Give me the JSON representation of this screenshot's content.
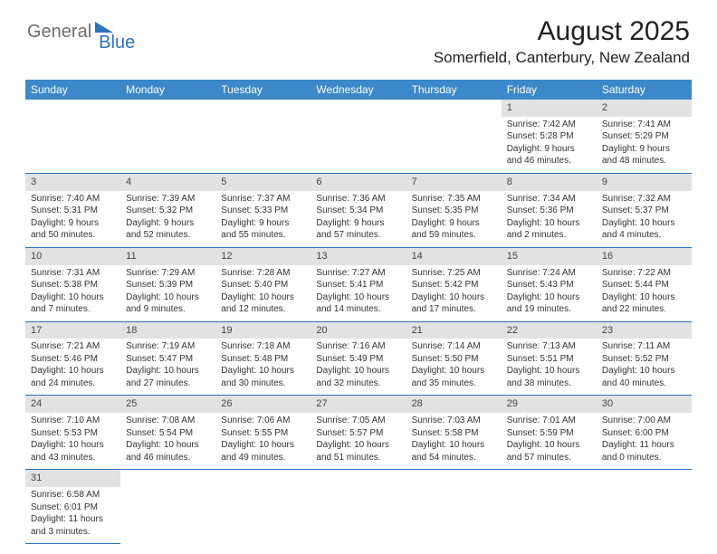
{
  "brand": {
    "part1": "General",
    "part2": "Blue"
  },
  "title": "August 2025",
  "location": "Somerfield, Canterbury, New Zealand",
  "colors": {
    "header_bg": "#3c88c8",
    "header_text": "#ffffff",
    "accent": "#2a74ba",
    "daynum_bg": "#e2e2e2",
    "text": "#333333",
    "logo_gray": "#6d6d6d"
  },
  "columns": [
    "Sunday",
    "Monday",
    "Tuesday",
    "Wednesday",
    "Thursday",
    "Friday",
    "Saturday"
  ],
  "weeks": [
    [
      null,
      null,
      null,
      null,
      null,
      {
        "n": "1",
        "sr": "7:42 AM",
        "ss": "5:28 PM",
        "dl": "9 hours and 46 minutes."
      },
      {
        "n": "2",
        "sr": "7:41 AM",
        "ss": "5:29 PM",
        "dl": "9 hours and 48 minutes."
      }
    ],
    [
      {
        "n": "3",
        "sr": "7:40 AM",
        "ss": "5:31 PM",
        "dl": "9 hours and 50 minutes."
      },
      {
        "n": "4",
        "sr": "7:39 AM",
        "ss": "5:32 PM",
        "dl": "9 hours and 52 minutes."
      },
      {
        "n": "5",
        "sr": "7:37 AM",
        "ss": "5:33 PM",
        "dl": "9 hours and 55 minutes."
      },
      {
        "n": "6",
        "sr": "7:36 AM",
        "ss": "5:34 PM",
        "dl": "9 hours and 57 minutes."
      },
      {
        "n": "7",
        "sr": "7:35 AM",
        "ss": "5:35 PM",
        "dl": "9 hours and 59 minutes."
      },
      {
        "n": "8",
        "sr": "7:34 AM",
        "ss": "5:36 PM",
        "dl": "10 hours and 2 minutes."
      },
      {
        "n": "9",
        "sr": "7:32 AM",
        "ss": "5:37 PM",
        "dl": "10 hours and 4 minutes."
      }
    ],
    [
      {
        "n": "10",
        "sr": "7:31 AM",
        "ss": "5:38 PM",
        "dl": "10 hours and 7 minutes."
      },
      {
        "n": "11",
        "sr": "7:29 AM",
        "ss": "5:39 PM",
        "dl": "10 hours and 9 minutes."
      },
      {
        "n": "12",
        "sr": "7:28 AM",
        "ss": "5:40 PM",
        "dl": "10 hours and 12 minutes."
      },
      {
        "n": "13",
        "sr": "7:27 AM",
        "ss": "5:41 PM",
        "dl": "10 hours and 14 minutes."
      },
      {
        "n": "14",
        "sr": "7:25 AM",
        "ss": "5:42 PM",
        "dl": "10 hours and 17 minutes."
      },
      {
        "n": "15",
        "sr": "7:24 AM",
        "ss": "5:43 PM",
        "dl": "10 hours and 19 minutes."
      },
      {
        "n": "16",
        "sr": "7:22 AM",
        "ss": "5:44 PM",
        "dl": "10 hours and 22 minutes."
      }
    ],
    [
      {
        "n": "17",
        "sr": "7:21 AM",
        "ss": "5:46 PM",
        "dl": "10 hours and 24 minutes."
      },
      {
        "n": "18",
        "sr": "7:19 AM",
        "ss": "5:47 PM",
        "dl": "10 hours and 27 minutes."
      },
      {
        "n": "19",
        "sr": "7:18 AM",
        "ss": "5:48 PM",
        "dl": "10 hours and 30 minutes."
      },
      {
        "n": "20",
        "sr": "7:16 AM",
        "ss": "5:49 PM",
        "dl": "10 hours and 32 minutes."
      },
      {
        "n": "21",
        "sr": "7:14 AM",
        "ss": "5:50 PM",
        "dl": "10 hours and 35 minutes."
      },
      {
        "n": "22",
        "sr": "7:13 AM",
        "ss": "5:51 PM",
        "dl": "10 hours and 38 minutes."
      },
      {
        "n": "23",
        "sr": "7:11 AM",
        "ss": "5:52 PM",
        "dl": "10 hours and 40 minutes."
      }
    ],
    [
      {
        "n": "24",
        "sr": "7:10 AM",
        "ss": "5:53 PM",
        "dl": "10 hours and 43 minutes."
      },
      {
        "n": "25",
        "sr": "7:08 AM",
        "ss": "5:54 PM",
        "dl": "10 hours and 46 minutes."
      },
      {
        "n": "26",
        "sr": "7:06 AM",
        "ss": "5:55 PM",
        "dl": "10 hours and 49 minutes."
      },
      {
        "n": "27",
        "sr": "7:05 AM",
        "ss": "5:57 PM",
        "dl": "10 hours and 51 minutes."
      },
      {
        "n": "28",
        "sr": "7:03 AM",
        "ss": "5:58 PM",
        "dl": "10 hours and 54 minutes."
      },
      {
        "n": "29",
        "sr": "7:01 AM",
        "ss": "5:59 PM",
        "dl": "10 hours and 57 minutes."
      },
      {
        "n": "30",
        "sr": "7:00 AM",
        "ss": "6:00 PM",
        "dl": "11 hours and 0 minutes."
      }
    ],
    [
      {
        "n": "31",
        "sr": "6:58 AM",
        "ss": "6:01 PM",
        "dl": "11 hours and 3 minutes."
      },
      null,
      null,
      null,
      null,
      null,
      null
    ]
  ],
  "labels": {
    "sunrise": "Sunrise:",
    "sunset": "Sunset:",
    "daylight": "Daylight:"
  }
}
